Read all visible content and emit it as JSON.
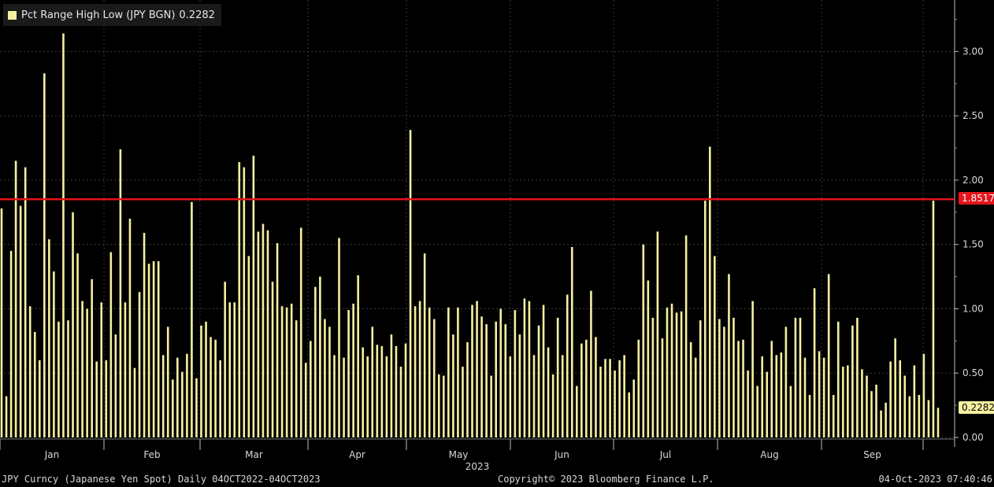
{
  "legend": {
    "label": "Pct Range High Low (JPY BGN)",
    "value": "0.2282",
    "color": "#f5f0a0"
  },
  "footer": {
    "left": "JPY Curncy (Japanese Yen Spot)  Daily 04OCT2022-04OCT2023",
    "center": "Copyright© 2023 Bloomberg Finance L.P.",
    "right": "04-Oct-2023 07:40:46"
  },
  "chart_data": {
    "type": "bar",
    "year_label": "2023",
    "ylim": [
      0,
      3.4
    ],
    "yticks": [
      "0.00",
      "0.50",
      "1.00",
      "1.50",
      "2.00",
      "2.50",
      "3.00"
    ],
    "xticks": [
      "Jan",
      "Feb",
      "Mar",
      "Apr",
      "May",
      "Jun",
      "Jul",
      "Aug",
      "Sep"
    ],
    "reference_line": {
      "value": 1.8517,
      "label": "1.8517",
      "color": "#e3141c"
    },
    "last_value": {
      "value": 0.2282,
      "label": "0.2282"
    },
    "grid": true,
    "bar_color": "#f5f0a0",
    "values": [
      1.78,
      0.32,
      1.45,
      2.15,
      1.8,
      2.1,
      1.02,
      0.82,
      0.6,
      2.83,
      1.54,
      1.29,
      0.9,
      3.14,
      0.91,
      1.75,
      1.43,
      1.06,
      1.0,
      1.23,
      0.59,
      1.05,
      0.6,
      1.44,
      0.8,
      2.24,
      1.05,
      1.7,
      0.54,
      1.13,
      1.59,
      1.35,
      1.37,
      1.37,
      0.64,
      0.86,
      0.45,
      0.62,
      0.51,
      0.65,
      1.83,
      0.46,
      0.87,
      0.9,
      0.78,
      0.76,
      0.6,
      1.21,
      1.05,
      1.05,
      2.14,
      2.1,
      1.41,
      2.19,
      1.6,
      1.66,
      1.61,
      1.21,
      1.51,
      1.02,
      1.01,
      1.04,
      0.91,
      1.63,
      0.58,
      0.75,
      1.17,
      1.25,
      0.92,
      0.86,
      0.64,
      1.55,
      0.62,
      0.99,
      1.04,
      1.26,
      0.7,
      0.63,
      0.86,
      0.72,
      0.71,
      0.63,
      0.8,
      0.71,
      0.55,
      0.73,
      2.39,
      1.02,
      1.06,
      1.43,
      1.01,
      0.92,
      0.49,
      0.48,
      1.01,
      0.8,
      1.01,
      0.55,
      0.74,
      1.03,
      1.06,
      0.94,
      0.88,
      0.48,
      0.9,
      1.0,
      0.88,
      0.63,
      0.99,
      0.8,
      1.08,
      1.06,
      0.64,
      0.87,
      1.03,
      0.7,
      0.49,
      0.93,
      0.64,
      1.11,
      1.48,
      0.4,
      0.73,
      0.76,
      1.14,
      0.78,
      0.55,
      0.61,
      0.61,
      0.52,
      0.6,
      0.64,
      0.35,
      0.45,
      0.76,
      1.5,
      1.22,
      0.93,
      1.6,
      0.77,
      1.01,
      1.04,
      0.97,
      0.98,
      1.57,
      0.74,
      0.62,
      0.91,
      1.84,
      2.26,
      1.41,
      0.92,
      0.86,
      1.27,
      0.93,
      0.75,
      0.76,
      0.52,
      1.06,
      0.4,
      0.63,
      0.51,
      0.75,
      0.64,
      0.66,
      0.86,
      0.4,
      0.93,
      0.93,
      0.62,
      0.33,
      1.16,
      0.67,
      0.62,
      1.27,
      0.33,
      0.9,
      0.55,
      0.56,
      0.87,
      0.93,
      0.53,
      0.48,
      0.36,
      0.41,
      0.21,
      0.27,
      0.59,
      0.77,
      0.6,
      0.48,
      0.32,
      0.56,
      0.33,
      0.65,
      0.29,
      1.84,
      0.23
    ]
  }
}
